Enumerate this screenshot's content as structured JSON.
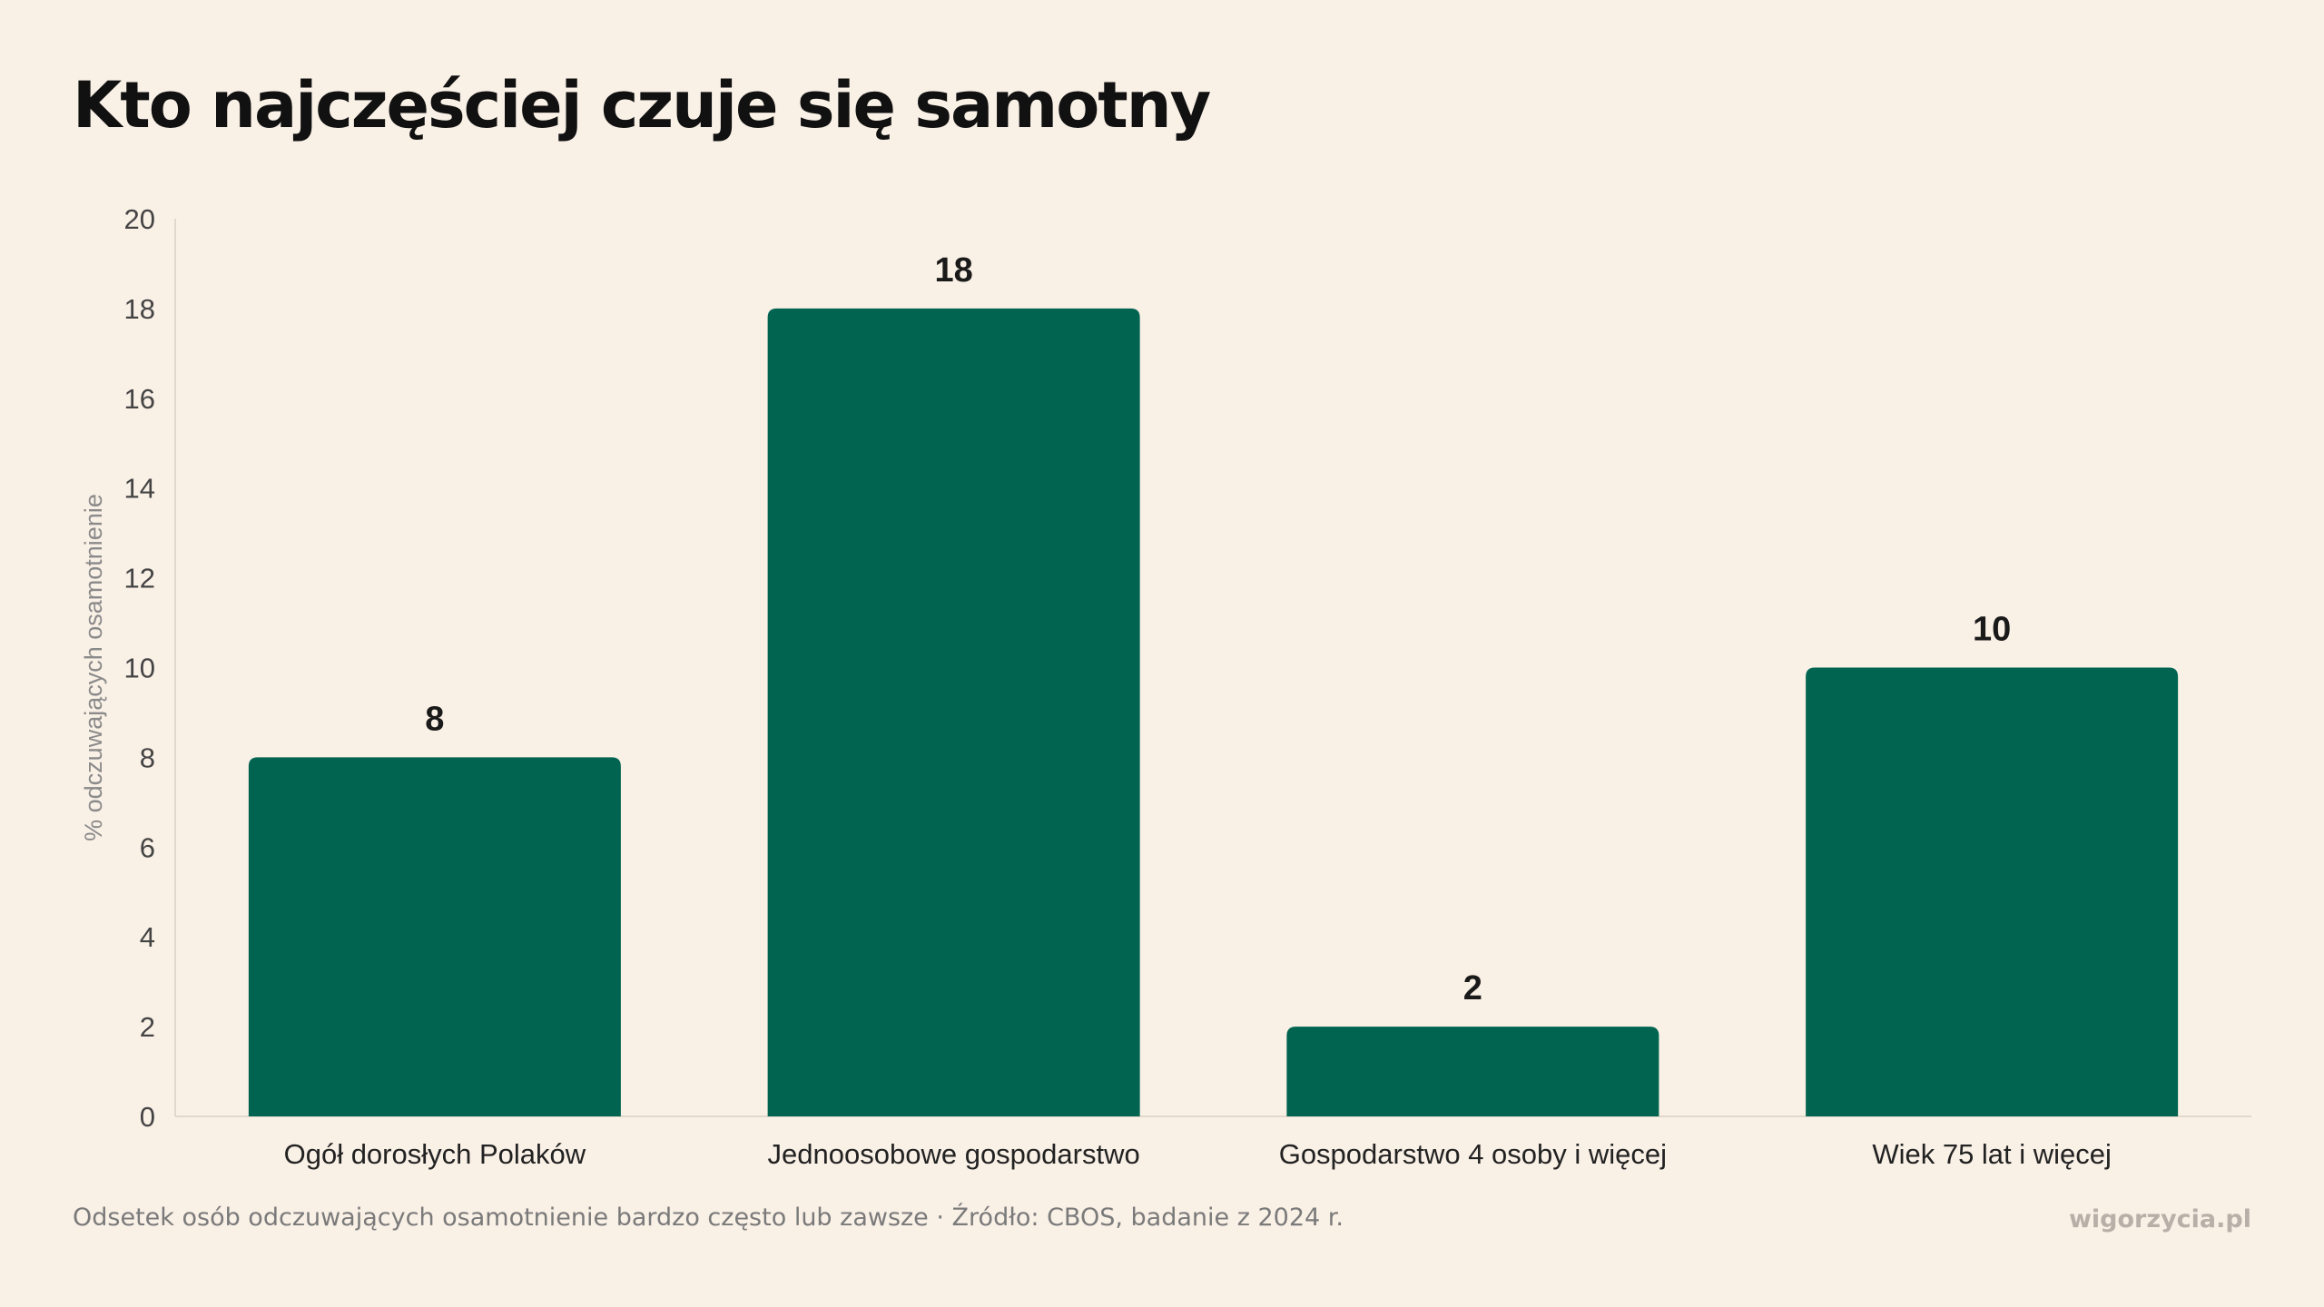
{
  "page": {
    "title": "Kto najczęściej czuje się samotny",
    "footer_note": "Odsetek osób odczuwających osamotnienie bardzo często lub zawsze · Źródło: CBOS, badanie z 2024 r.",
    "brand": "wigorzycia.pl"
  },
  "colors": {
    "background": "#f9f0e6",
    "bar": "#006450",
    "axis_text": "#444444",
    "ylabel_text": "#8a8a8a"
  },
  "chart_data": {
    "type": "bar",
    "title": "Kto najczęściej czuje się samotny",
    "categories": [
      "Ogół dorosłych Polaków",
      "Jednoosobowe gospodarstwo",
      "Gospodarstwo 4 osoby i więcej",
      "Wiek 75 lat i więcej"
    ],
    "values": [
      8,
      18,
      2,
      10
    ],
    "data_labels": [
      "8",
      "18",
      "2",
      "10"
    ],
    "xlabel": "",
    "ylabel": "% odczuwających osamotnienie",
    "ylim": [
      0,
      20
    ],
    "yticks": [
      0,
      2,
      4,
      6,
      8,
      10,
      12,
      14,
      16,
      18,
      20
    ],
    "grid": false,
    "legend": "none"
  }
}
